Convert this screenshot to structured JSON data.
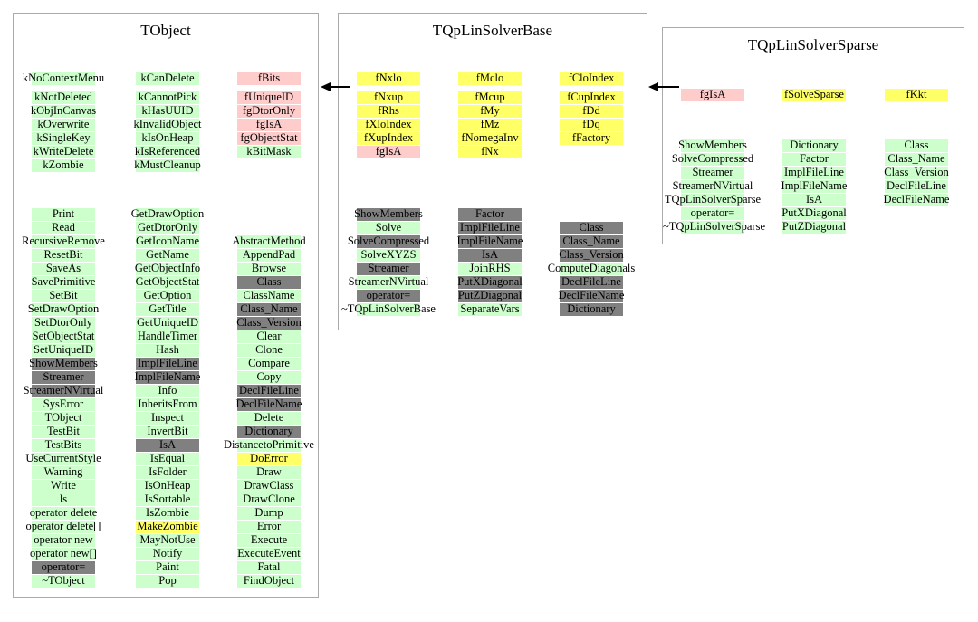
{
  "colors": {
    "green": "#ccffcc",
    "pink": "#ffcccc",
    "yellow": "#ffff66",
    "gray": "#808080"
  },
  "classes": [
    {
      "title": "TObject",
      "members": {
        "columns": [
          [
            {
              "t": "kNoContextMenu",
              "c": "green"
            },
            {
              "t": "kNotDeleted",
              "c": "green"
            },
            {
              "t": "kObjInCanvas",
              "c": "green"
            },
            {
              "t": "kOverwrite",
              "c": "green"
            },
            {
              "t": "kSingleKey",
              "c": "green"
            },
            {
              "t": "kWriteDelete",
              "c": "green"
            },
            {
              "t": "kZombie",
              "c": "green"
            }
          ],
          [
            {
              "t": "kCanDelete",
              "c": "green"
            },
            {
              "t": "kCannotPick",
              "c": "green"
            },
            {
              "t": "kHasUUID",
              "c": "green"
            },
            {
              "t": "kInvalidObject",
              "c": "green"
            },
            {
              "t": "kIsOnHeap",
              "c": "green"
            },
            {
              "t": "kIsReferenced",
              "c": "green"
            },
            {
              "t": "kMustCleanup",
              "c": "green"
            }
          ],
          [
            {
              "t": "fBits",
              "c": "pink"
            },
            {
              "t": "fUniqueID",
              "c": "pink"
            },
            {
              "t": "fgDtorOnly",
              "c": "pink"
            },
            {
              "t": "fgIsA",
              "c": "pink"
            },
            {
              "t": "fgObjectStat",
              "c": "pink"
            },
            {
              "t": "kBitMask",
              "c": "green"
            }
          ]
        ]
      },
      "methods": {
        "columns": [
          [
            {
              "t": "Print",
              "c": "green"
            },
            {
              "t": "Read",
              "c": "green"
            },
            {
              "t": "RecursiveRemove",
              "c": "green"
            },
            {
              "t": "ResetBit",
              "c": "green"
            },
            {
              "t": "SaveAs",
              "c": "green"
            },
            {
              "t": "SavePrimitive",
              "c": "green"
            },
            {
              "t": "SetBit",
              "c": "green"
            },
            {
              "t": "SetDrawOption",
              "c": "green"
            },
            {
              "t": "SetDtorOnly",
              "c": "green"
            },
            {
              "t": "SetObjectStat",
              "c": "green"
            },
            {
              "t": "SetUniqueID",
              "c": "green"
            },
            {
              "t": "ShowMembers",
              "c": "gray"
            },
            {
              "t": "Streamer",
              "c": "gray"
            },
            {
              "t": "StreamerNVirtual",
              "c": "gray"
            },
            {
              "t": "SysError",
              "c": "green"
            },
            {
              "t": "TObject",
              "c": "green"
            },
            {
              "t": "TestBit",
              "c": "green"
            },
            {
              "t": "TestBits",
              "c": "green"
            },
            {
              "t": "UseCurrentStyle",
              "c": "green"
            },
            {
              "t": "Warning",
              "c": "green"
            },
            {
              "t": "Write",
              "c": "green"
            },
            {
              "t": "ls",
              "c": "green"
            },
            {
              "t": "operator delete",
              "c": "green"
            },
            {
              "t": "operator delete[]",
              "c": "green"
            },
            {
              "t": "operator new",
              "c": "green"
            },
            {
              "t": "operator new[]",
              "c": "green"
            },
            {
              "t": "operator=",
              "c": "gray"
            },
            {
              "t": "~TObject",
              "c": "green"
            }
          ],
          [
            {
              "t": "GetDrawOption",
              "c": "green"
            },
            {
              "t": "GetDtorOnly",
              "c": "green"
            },
            {
              "t": "GetIconName",
              "c": "green"
            },
            {
              "t": "GetName",
              "c": "green"
            },
            {
              "t": "GetObjectInfo",
              "c": "green"
            },
            {
              "t": "GetObjectStat",
              "c": "green"
            },
            {
              "t": "GetOption",
              "c": "green"
            },
            {
              "t": "GetTitle",
              "c": "green"
            },
            {
              "t": "GetUniqueID",
              "c": "green"
            },
            {
              "t": "HandleTimer",
              "c": "green"
            },
            {
              "t": "Hash",
              "c": "green"
            },
            {
              "t": "ImplFileLine",
              "c": "gray"
            },
            {
              "t": "ImplFileName",
              "c": "gray"
            },
            {
              "t": "Info",
              "c": "green"
            },
            {
              "t": "InheritsFrom",
              "c": "green"
            },
            {
              "t": "Inspect",
              "c": "green"
            },
            {
              "t": "InvertBit",
              "c": "green"
            },
            {
              "t": "IsA",
              "c": "gray"
            },
            {
              "t": "IsEqual",
              "c": "green"
            },
            {
              "t": "IsFolder",
              "c": "green"
            },
            {
              "t": "IsOnHeap",
              "c": "green"
            },
            {
              "t": "IsSortable",
              "c": "green"
            },
            {
              "t": "IsZombie",
              "c": "green"
            },
            {
              "t": "MakeZombie",
              "c": "yellow"
            },
            {
              "t": "MayNotUse",
              "c": "green"
            },
            {
              "t": "Notify",
              "c": "green"
            },
            {
              "t": "Paint",
              "c": "green"
            },
            {
              "t": "Pop",
              "c": "green"
            }
          ],
          [
            {
              "t": "AbstractMethod",
              "c": "green"
            },
            {
              "t": "AppendPad",
              "c": "green"
            },
            {
              "t": "Browse",
              "c": "green"
            },
            {
              "t": "Class",
              "c": "gray"
            },
            {
              "t": "ClassName",
              "c": "green"
            },
            {
              "t": "Class_Name",
              "c": "gray"
            },
            {
              "t": "Class_Version",
              "c": "gray"
            },
            {
              "t": "Clear",
              "c": "green"
            },
            {
              "t": "Clone",
              "c": "green"
            },
            {
              "t": "Compare",
              "c": "green"
            },
            {
              "t": "Copy",
              "c": "green"
            },
            {
              "t": "DeclFileLine",
              "c": "gray"
            },
            {
              "t": "DeclFileName",
              "c": "gray"
            },
            {
              "t": "Delete",
              "c": "green"
            },
            {
              "t": "Dictionary",
              "c": "gray"
            },
            {
              "t": "DistancetoPrimitive",
              "c": "green"
            },
            {
              "t": "DoError",
              "c": "yellow"
            },
            {
              "t": "Draw",
              "c": "green"
            },
            {
              "t": "DrawClass",
              "c": "green"
            },
            {
              "t": "DrawClone",
              "c": "green"
            },
            {
              "t": "Dump",
              "c": "green"
            },
            {
              "t": "Error",
              "c": "green"
            },
            {
              "t": "Execute",
              "c": "green"
            },
            {
              "t": "ExecuteEvent",
              "c": "green"
            },
            {
              "t": "Fatal",
              "c": "green"
            },
            {
              "t": "FindObject",
              "c": "green"
            }
          ]
        ]
      }
    },
    {
      "title": "TQpLinSolverBase",
      "members": {
        "columns": [
          [
            {
              "t": "fNxlo",
              "c": "yellow"
            },
            {
              "t": "fNxup",
              "c": "yellow"
            },
            {
              "t": "fRhs",
              "c": "yellow"
            },
            {
              "t": "fXloIndex",
              "c": "yellow"
            },
            {
              "t": "fXupIndex",
              "c": "yellow"
            },
            {
              "t": "fgIsA",
              "c": "pink"
            }
          ],
          [
            {
              "t": "fMclo",
              "c": "yellow"
            },
            {
              "t": "fMcup",
              "c": "yellow"
            },
            {
              "t": "fMy",
              "c": "yellow"
            },
            {
              "t": "fMz",
              "c": "yellow"
            },
            {
              "t": "fNomegaInv",
              "c": "yellow"
            },
            {
              "t": "fNx",
              "c": "yellow"
            }
          ],
          [
            {
              "t": "fCloIndex",
              "c": "yellow"
            },
            {
              "t": "fCupIndex",
              "c": "yellow"
            },
            {
              "t": "fDd",
              "c": "yellow"
            },
            {
              "t": "fDq",
              "c": "yellow"
            },
            {
              "t": "fFactory",
              "c": "yellow"
            }
          ]
        ]
      },
      "methods": {
        "columns": [
          [
            {
              "t": "ShowMembers",
              "c": "gray"
            },
            {
              "t": "Solve",
              "c": "green"
            },
            {
              "t": "SolveCompressed",
              "c": "gray"
            },
            {
              "t": "SolveXYZS",
              "c": "green"
            },
            {
              "t": "Streamer",
              "c": "gray"
            },
            {
              "t": "StreamerNVirtual",
              "c": "green"
            },
            {
              "t": "operator=",
              "c": "gray"
            },
            {
              "t": "~TQpLinSolverBase",
              "c": "green"
            }
          ],
          [
            {
              "t": "Factor",
              "c": "gray"
            },
            {
              "t": "ImplFileLine",
              "c": "gray"
            },
            {
              "t": "ImplFileName",
              "c": "gray"
            },
            {
              "t": "IsA",
              "c": "gray"
            },
            {
              "t": "JoinRHS",
              "c": "green"
            },
            {
              "t": "PutXDiagonal",
              "c": "gray"
            },
            {
              "t": "PutZDiagonal",
              "c": "gray"
            },
            {
              "t": "SeparateVars",
              "c": "green"
            }
          ],
          [
            {
              "t": "Class",
              "c": "gray"
            },
            {
              "t": "Class_Name",
              "c": "gray"
            },
            {
              "t": "Class_Version",
              "c": "gray"
            },
            {
              "t": "ComputeDiagonals",
              "c": "green"
            },
            {
              "t": "DeclFileLine",
              "c": "gray"
            },
            {
              "t": "DeclFileName",
              "c": "gray"
            },
            {
              "t": "Dictionary",
              "c": "gray"
            }
          ]
        ]
      }
    },
    {
      "title": "TQpLinSolverSparse",
      "members": {
        "columns": [
          [
            {
              "t": "fgIsA",
              "c": "pink"
            }
          ],
          [
            {
              "t": "fSolveSparse",
              "c": "yellow"
            }
          ],
          [
            {
              "t": "fKkt",
              "c": "yellow"
            }
          ]
        ]
      },
      "methods": {
        "columns": [
          [
            {
              "t": "ShowMembers",
              "c": "green"
            },
            {
              "t": "SolveCompressed",
              "c": "green"
            },
            {
              "t": "Streamer",
              "c": "green"
            },
            {
              "t": "StreamerNVirtual",
              "c": "green"
            },
            {
              "t": "TQpLinSolverSparse",
              "c": "green"
            },
            {
              "t": "operator=",
              "c": "green"
            },
            {
              "t": "~TQpLinSolverSparse",
              "c": "green"
            }
          ],
          [
            {
              "t": "Dictionary",
              "c": "green"
            },
            {
              "t": "Factor",
              "c": "green"
            },
            {
              "t": "ImplFileLine",
              "c": "green"
            },
            {
              "t": "ImplFileName",
              "c": "green"
            },
            {
              "t": "IsA",
              "c": "green"
            },
            {
              "t": "PutXDiagonal",
              "c": "green"
            },
            {
              "t": "PutZDiagonal",
              "c": "green"
            }
          ],
          [
            {
              "t": "Class",
              "c": "green"
            },
            {
              "t": "Class_Name",
              "c": "green"
            },
            {
              "t": "Class_Version",
              "c": "green"
            },
            {
              "t": "DeclFileLine",
              "c": "green"
            },
            {
              "t": "DeclFileName",
              "c": "green"
            }
          ]
        ]
      }
    }
  ],
  "arrows": [
    {
      "name": "base-inherits-from-tobject"
    },
    {
      "name": "sparse-inherits-from-base"
    }
  ]
}
